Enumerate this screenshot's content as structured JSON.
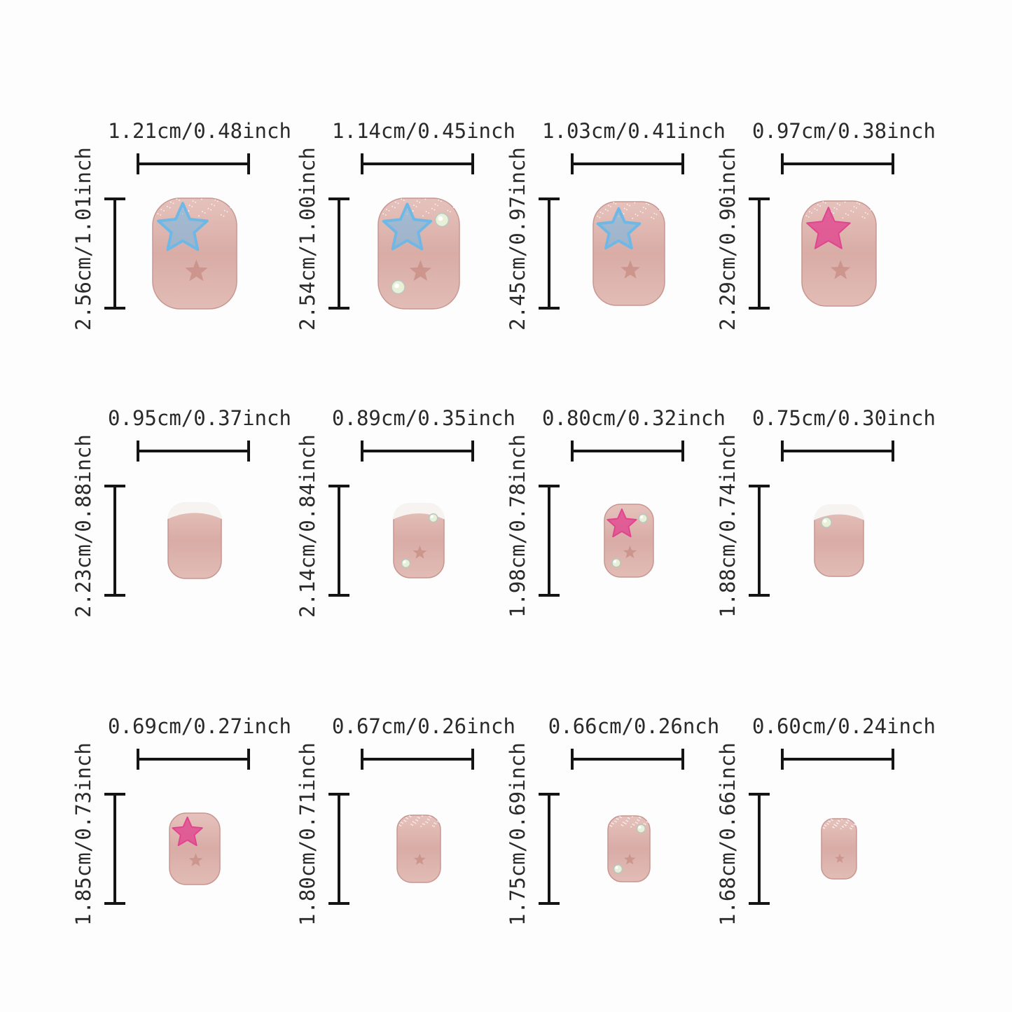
{
  "nails": [
    {
      "width_label": "1.21cm/0.48inch",
      "length_label": "2.56cm/1.01inch",
      "design": "blue-star",
      "gems": 0,
      "glitter": true
    },
    {
      "width_label": "1.14cm/0.45inch",
      "length_label": "2.54cm/1.00inch",
      "design": "blue-star",
      "gems": 2,
      "glitter": true
    },
    {
      "width_label": "1.03cm/0.41inch",
      "length_label": "2.45cm/0.97inch",
      "design": "blue-star",
      "gems": 0,
      "glitter": true
    },
    {
      "width_label": "0.97cm/0.38inch",
      "length_label": "2.29cm/0.90inch",
      "design": "pink-star",
      "gems": 0,
      "glitter": true
    },
    {
      "width_label": "0.95cm/0.37inch",
      "length_label": "2.23cm/0.88inch",
      "design": "french-tip",
      "gems": 0,
      "glitter": false
    },
    {
      "width_label": "0.89cm/0.35inch",
      "length_label": "2.14cm/0.84inch",
      "design": "french-tip",
      "gems": 2,
      "glitter": false
    },
    {
      "width_label": "0.80cm/0.32inch",
      "length_label": "1.98cm/0.78inch",
      "design": "pink-star",
      "gems": 2,
      "glitter": false
    },
    {
      "width_label": "0.75cm/0.30inch",
      "length_label": "1.88cm/0.74inch",
      "design": "french-tip",
      "gems": 1,
      "glitter": false
    },
    {
      "width_label": "0.69cm/0.27inch",
      "length_label": "1.85cm/0.73inch",
      "design": "pink-star",
      "gems": 0,
      "glitter": false
    },
    {
      "width_label": "0.67cm/0.26inch",
      "length_label": "1.80cm/0.71inch",
      "design": "plain-glitter",
      "gems": 0,
      "glitter": true
    },
    {
      "width_label": "0.66cm/0.26nch",
      "length_label": "1.75cm/0.69inch",
      "design": "plain-glitter",
      "gems": 2,
      "glitter": true
    },
    {
      "width_label": "0.60cm/0.24inch",
      "length_label": "1.68cm/0.66inch",
      "design": "plain-glitter",
      "gems": 0,
      "glitter": true
    }
  ],
  "colors": {
    "nail_base": "#d9aca6",
    "nail_edge": "#c89690",
    "blue_star": "#6fb8e6",
    "pink_star": "#e0468f",
    "small_star": "#c99187",
    "french_tip": "#f7f3f1"
  }
}
